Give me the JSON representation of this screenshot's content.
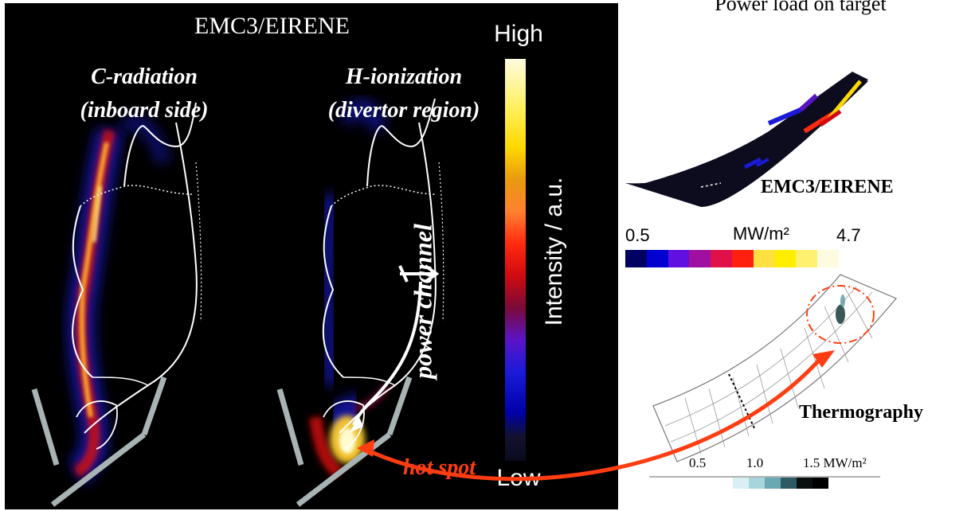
{
  "simulation": {
    "title": "EMC3/EIRENE",
    "plots": [
      {
        "label_line1": "C-radiation",
        "label_line2": "(inboard side)"
      },
      {
        "label_line1": "H-ionization",
        "label_line2": "(divertor region)"
      }
    ],
    "colorbar": {
      "top_label": "High",
      "bottom_label": "Low",
      "axis_label": "Intensity / a.u."
    },
    "annotations": {
      "power_channel": "power channel",
      "hot_spot": "hot spot"
    }
  },
  "target_panel": {
    "title": "Power load on target",
    "emc3_label": "EMC3/EIRENE",
    "colorbar": {
      "min": "0.5",
      "unit": "MW/m²",
      "max": "4.7"
    },
    "thermography_label": "Thermography",
    "thermography_scale": {
      "tick1": "0.5",
      "tick2": "1.0",
      "tick3": "1.5 MW/m²"
    }
  },
  "colors": {
    "hot_spot_arrow": "#ff3d12",
    "background_left": "#000000"
  }
}
